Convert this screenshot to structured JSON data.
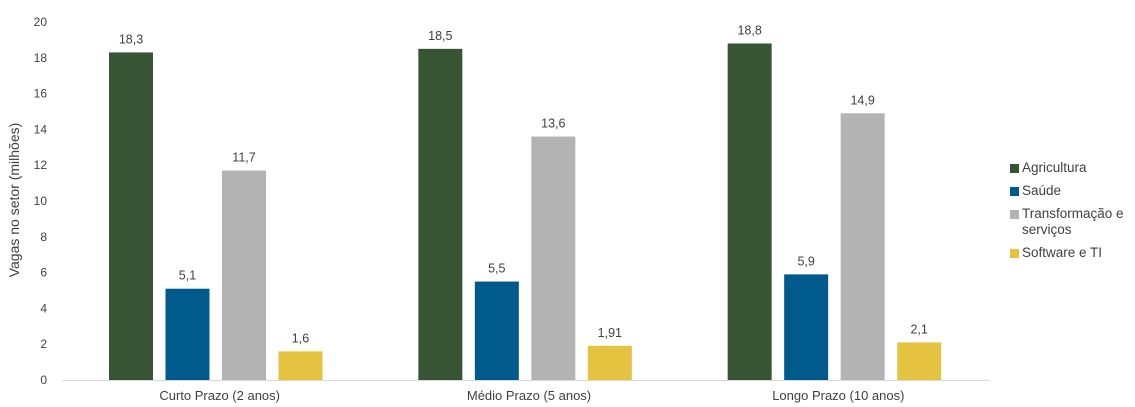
{
  "chart_data": {
    "type": "bar",
    "title": "",
    "xlabel": "",
    "ylabel": "Vagas no setor (milhões)",
    "ylim": [
      0,
      20
    ],
    "yticks": [
      0,
      2,
      4,
      6,
      8,
      10,
      12,
      14,
      16,
      18,
      20
    ],
    "grid": false,
    "legend_position": "right",
    "categories": [
      "Curto Prazo (2 anos)",
      "Médio Prazo (5 anos)",
      "Longo Prazo (10 anos)"
    ],
    "series": [
      {
        "name": "Agricultura",
        "color": "#375534",
        "values": [
          18.3,
          18.5,
          18.8
        ],
        "labels": [
          "18,3",
          "18,5",
          "18,8"
        ]
      },
      {
        "name": "Saúde",
        "color": "#005a8c",
        "values": [
          5.1,
          5.5,
          5.9
        ],
        "labels": [
          "5,1",
          "5,5",
          "5,9"
        ]
      },
      {
        "name": "Transformação e serviços",
        "color": "#b3b3b3",
        "values": [
          11.7,
          13.6,
          14.9
        ],
        "labels": [
          "11,7",
          "13,6",
          "14,9"
        ]
      },
      {
        "name": "Software e TI",
        "color": "#e3c33f",
        "values": [
          1.6,
          1.91,
          2.1
        ],
        "labels": [
          "1,6",
          "1,91",
          "2,1"
        ]
      }
    ]
  }
}
